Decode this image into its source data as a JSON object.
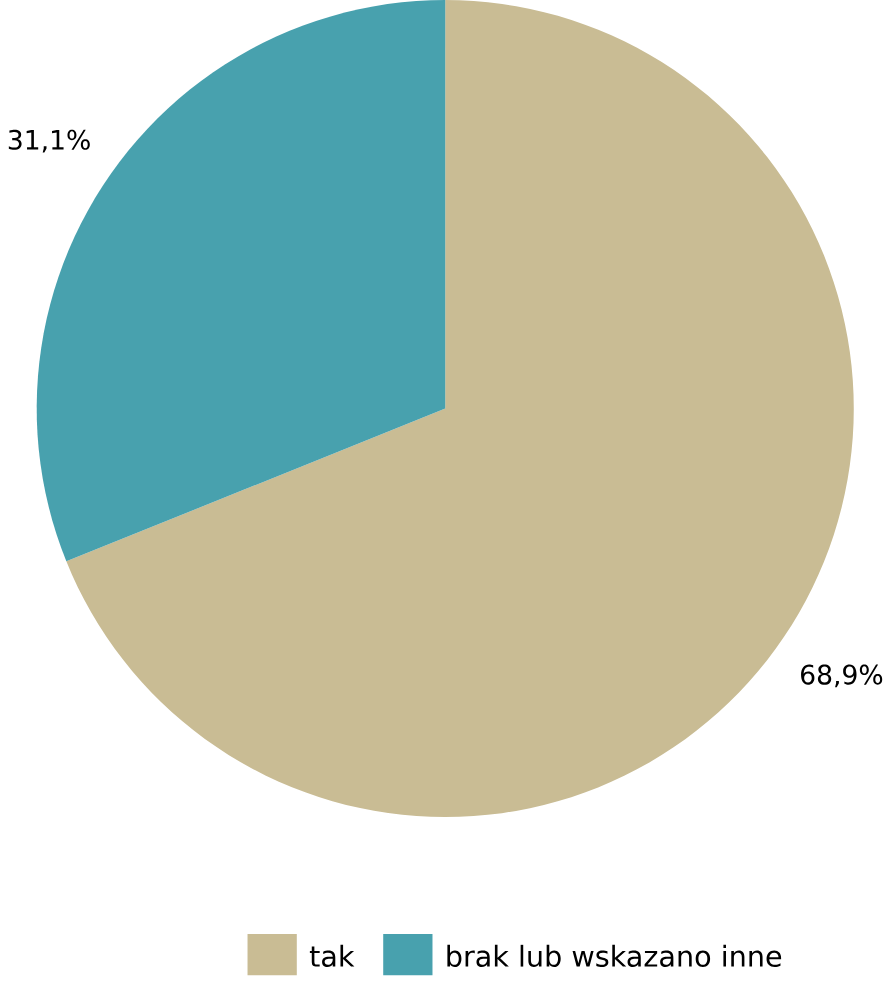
{
  "chart_data": {
    "type": "pie",
    "categories": [
      "tak",
      "brak lub wskazano inne"
    ],
    "values": [
      68.9,
      31.1
    ],
    "colors": [
      "#c9bc94",
      "#48a1ae"
    ],
    "value_labels": [
      "68,9%",
      "31,1%"
    ],
    "legend": "bottom"
  }
}
